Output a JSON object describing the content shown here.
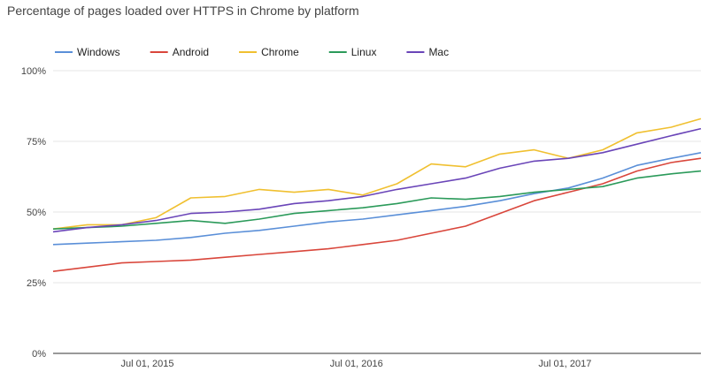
{
  "chart_data": {
    "type": "line",
    "title": "Percentage of pages loaded over HTTPS in Chrome by platform",
    "xlabel": "",
    "ylabel": "",
    "x_domain": [
      "2015-01-17",
      "2018-02-24"
    ],
    "ylim": [
      0,
      100
    ],
    "y_ticks": [
      {
        "value": 0,
        "label": "0%"
      },
      {
        "value": 25,
        "label": "25%"
      },
      {
        "value": 50,
        "label": "50%"
      },
      {
        "value": 75,
        "label": "75%"
      },
      {
        "value": 100,
        "label": "100%"
      }
    ],
    "x_ticks": [
      {
        "date": "2015-07-01",
        "label": "Jul 01, 2015"
      },
      {
        "date": "2016-07-01",
        "label": "Jul 01, 2016"
      },
      {
        "date": "2017-07-01",
        "label": "Jul 01, 2017"
      }
    ],
    "grid": true,
    "legend_position": "top-left",
    "x": [
      "2015-01-17",
      "2015-03-18",
      "2015-05-17",
      "2015-07-16",
      "2015-09-15",
      "2015-11-14",
      "2016-01-13",
      "2016-03-14",
      "2016-05-13",
      "2016-07-12",
      "2016-09-10",
      "2016-11-09",
      "2017-01-08",
      "2017-03-09",
      "2017-05-08",
      "2017-07-07",
      "2017-09-05",
      "2017-11-04",
      "2018-01-03",
      "2018-02-24"
    ],
    "series": [
      {
        "name": "Windows",
        "color": "#5a8fd8",
        "values": [
          38.5,
          39,
          39.5,
          40,
          41,
          42.5,
          43.5,
          45,
          46.5,
          47.5,
          49,
          50.5,
          52,
          54,
          56.5,
          58.5,
          62,
          66.5,
          69,
          71
        ]
      },
      {
        "name": "Android",
        "color": "#d9463b",
        "values": [
          29,
          30.5,
          32,
          32.5,
          33,
          34,
          35,
          36,
          37,
          38.5,
          40,
          42.5,
          45,
          49.5,
          54,
          57,
          60,
          64.5,
          67.5,
          69
        ]
      },
      {
        "name": "Chrome",
        "color": "#f0c030",
        "values": [
          44,
          45.5,
          45.5,
          48,
          55,
          55.5,
          58,
          57,
          58,
          56,
          60,
          67,
          66,
          70.5,
          72,
          69,
          72,
          78,
          80,
          83
        ]
      },
      {
        "name": "Linux",
        "color": "#2b9a5a",
        "values": [
          44,
          44.5,
          45,
          46,
          47,
          46,
          47.5,
          49.5,
          50.5,
          51.5,
          53,
          55,
          54.5,
          55.5,
          57,
          58,
          59,
          62,
          63.5,
          64.5
        ]
      },
      {
        "name": "Mac",
        "color": "#6a45b8",
        "values": [
          43,
          44.5,
          45.5,
          47,
          49.5,
          50,
          51,
          53,
          54,
          55.5,
          58,
          60,
          62,
          65.5,
          68,
          69,
          71,
          74,
          77,
          79.5
        ]
      }
    ]
  }
}
